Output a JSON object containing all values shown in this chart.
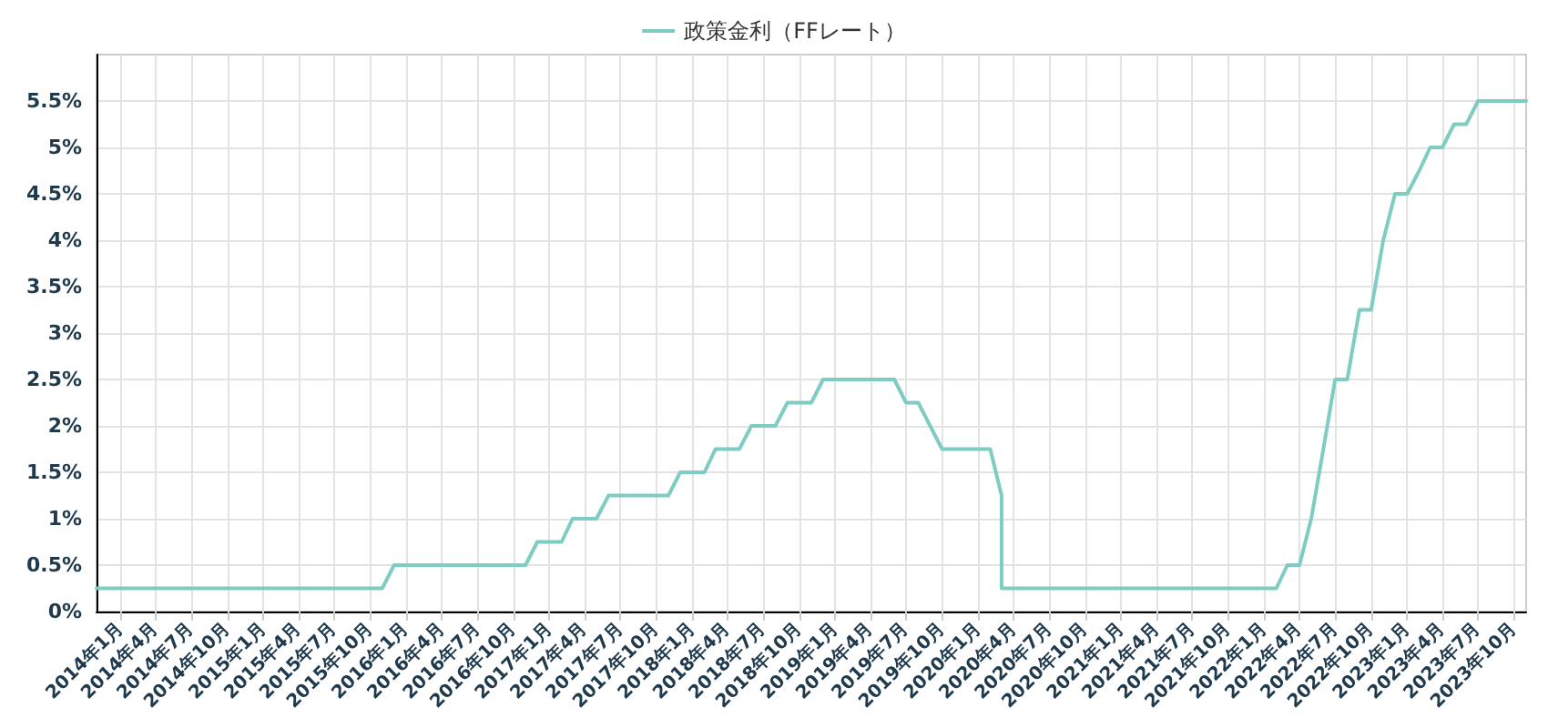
{
  "chart_data": {
    "type": "line",
    "legend": "top",
    "grid": true,
    "marker": "none",
    "line_style": "solid",
    "x": [
      "2013-11",
      "2015-11",
      "2015-12",
      "2016-11",
      "2016-12",
      "2017-02",
      "2017-03",
      "2017-05",
      "2017-06",
      "2017-11",
      "2017-12",
      "2018-02",
      "2018-03",
      "2018-05",
      "2018-06",
      "2018-08",
      "2018-09",
      "2018-11",
      "2018-12",
      "2019-06",
      "2019-07",
      "2019-08",
      "2019-10",
      "2020-02",
      "2020-03",
      "2020-03",
      "2022-02",
      "2022-03",
      "2022-04",
      "2022-05",
      "2022-06",
      "2022-07",
      "2022-08",
      "2022-09",
      "2022-10",
      "2022-11",
      "2022-12",
      "2023-01",
      "2023-02",
      "2023-03",
      "2023-04",
      "2023-05",
      "2023-06",
      "2023-07",
      "2023-11"
    ],
    "series": [
      {
        "name": "政策金利（FFレート）",
        "color": "#7fcdc2",
        "values": [
          0.25,
          0.25,
          0.5,
          0.5,
          0.75,
          0.75,
          1.0,
          1.0,
          1.25,
          1.25,
          1.5,
          1.5,
          1.75,
          1.75,
          2.0,
          2.0,
          2.25,
          2.25,
          2.5,
          2.5,
          2.25,
          2.25,
          1.75,
          1.75,
          1.25,
          0.25,
          0.25,
          0.5,
          0.5,
          1.0,
          1.75,
          2.5,
          2.5,
          3.25,
          3.25,
          4.0,
          4.5,
          4.5,
          4.75,
          5.0,
          5.0,
          5.25,
          5.25,
          5.5,
          5.5
        ]
      }
    ],
    "xlim": [
      "2013-11",
      "2023-11"
    ],
    "xticks": [
      {
        "value": "2014-01",
        "label": "2014年1月"
      },
      {
        "value": "2014-04",
        "label": "2014年4月"
      },
      {
        "value": "2014-07",
        "label": "2014年7月"
      },
      {
        "value": "2014-10",
        "label": "2014年10月"
      },
      {
        "value": "2015-01",
        "label": "2015年1月"
      },
      {
        "value": "2015-04",
        "label": "2015年4月"
      },
      {
        "value": "2015-07",
        "label": "2015年7月"
      },
      {
        "value": "2015-10",
        "label": "2015年10月"
      },
      {
        "value": "2016-01",
        "label": "2016年1月"
      },
      {
        "value": "2016-04",
        "label": "2016年4月"
      },
      {
        "value": "2016-07",
        "label": "2016年7月"
      },
      {
        "value": "2016-10",
        "label": "2016年10月"
      },
      {
        "value": "2017-01",
        "label": "2017年1月"
      },
      {
        "value": "2017-04",
        "label": "2017年4月"
      },
      {
        "value": "2017-07",
        "label": "2017年7月"
      },
      {
        "value": "2017-10",
        "label": "2017年10月"
      },
      {
        "value": "2018-01",
        "label": "2018年1月"
      },
      {
        "value": "2018-04",
        "label": "2018年4月"
      },
      {
        "value": "2018-07",
        "label": "2018年7月"
      },
      {
        "value": "2018-10",
        "label": "2018年10月"
      },
      {
        "value": "2019-01",
        "label": "2019年1月"
      },
      {
        "value": "2019-04",
        "label": "2019年4月"
      },
      {
        "value": "2019-07",
        "label": "2019年7月"
      },
      {
        "value": "2019-10",
        "label": "2019年10月"
      },
      {
        "value": "2020-01",
        "label": "2020年1月"
      },
      {
        "value": "2020-04",
        "label": "2020年4月"
      },
      {
        "value": "2020-07",
        "label": "2020年7月"
      },
      {
        "value": "2020-10",
        "label": "2020年10月"
      },
      {
        "value": "2021-01",
        "label": "2021年1月"
      },
      {
        "value": "2021-04",
        "label": "2021年4月"
      },
      {
        "value": "2021-07",
        "label": "2021年7月"
      },
      {
        "value": "2021-10",
        "label": "2021年10月"
      },
      {
        "value": "2022-01",
        "label": "2022年1月"
      },
      {
        "value": "2022-04",
        "label": "2022年4月"
      },
      {
        "value": "2022-07",
        "label": "2022年7月"
      },
      {
        "value": "2022-10",
        "label": "2022年10月"
      },
      {
        "value": "2023-01",
        "label": "2023年1月"
      },
      {
        "value": "2023-04",
        "label": "2023年4月"
      },
      {
        "value": "2023-07",
        "label": "2023年7月"
      },
      {
        "value": "2023-10",
        "label": "2023年10月"
      }
    ],
    "ylim": [
      0,
      6
    ],
    "yticks": [
      {
        "value": 0,
        "label": "0%"
      },
      {
        "value": 0.5,
        "label": "0.5%"
      },
      {
        "value": 1,
        "label": "1%"
      },
      {
        "value": 1.5,
        "label": "1.5%"
      },
      {
        "value": 2,
        "label": "2%"
      },
      {
        "value": 2.5,
        "label": "2.5%"
      },
      {
        "value": 3,
        "label": "3%"
      },
      {
        "value": 3.5,
        "label": "3.5%"
      },
      {
        "value": 4,
        "label": "4%"
      },
      {
        "value": 4.5,
        "label": "4.5%"
      },
      {
        "value": 5,
        "label": "5%"
      },
      {
        "value": 5.5,
        "label": "5.5%"
      }
    ]
  }
}
